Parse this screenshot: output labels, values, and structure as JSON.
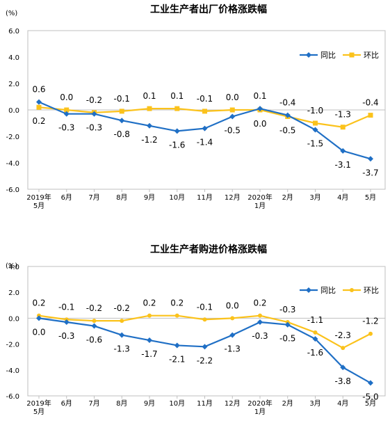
{
  "chart_data": [
    {
      "type": "line",
      "title": "工业生产者出厂价格涨跌幅",
      "y_unit": "(%)",
      "ylim": [
        -6.0,
        6.0
      ],
      "yticks": [
        6.0,
        4.0,
        2.0,
        0.0,
        -2.0,
        -4.0,
        -6.0
      ],
      "ytick_labels": [
        "6.0",
        "4.0",
        "2.0",
        "0.0",
        "-2.0",
        "-4.0",
        "-6.0"
      ],
      "categories": [
        [
          "2019年",
          "5月"
        ],
        [
          "6月"
        ],
        [
          "7月"
        ],
        [
          "8月"
        ],
        [
          "9月"
        ],
        [
          "10月"
        ],
        [
          "11月"
        ],
        [
          "12月"
        ],
        [
          "2020年",
          "1月"
        ],
        [
          "2月"
        ],
        [
          "3月"
        ],
        [
          "4月"
        ],
        [
          "5月"
        ]
      ],
      "grid": false,
      "legend_position": "top-right",
      "series": [
        {
          "name": "同比",
          "color": "#1F6FC5",
          "marker": "diamond",
          "values": [
            0.6,
            -0.3,
            -0.3,
            -0.8,
            -1.2,
            -1.6,
            -1.4,
            -0.5,
            0.1,
            -0.4,
            -1.5,
            -3.1,
            -3.7
          ],
          "labels": [
            "0.6",
            "-0.3",
            "-0.3",
            "-0.8",
            "-1.2",
            "-1.6",
            "-1.4",
            "-0.5",
            "0.1",
            "-0.4",
            "-1.5",
            "-3.1",
            "-3.7"
          ]
        },
        {
          "name": "环比",
          "color": "#FBC21B",
          "marker": "square",
          "values": [
            0.2,
            0.0,
            -0.2,
            -0.1,
            0.1,
            0.1,
            -0.1,
            0.0,
            0.0,
            -0.5,
            -1.0,
            -1.3,
            -0.4
          ],
          "labels": [
            "0.2",
            "0.0",
            "-0.2",
            "-0.1",
            "0.1",
            "0.1",
            "-0.1",
            "0.0",
            "0.0",
            "-0.5",
            "-1.0",
            "-1.3",
            "-0.4"
          ]
        }
      ]
    },
    {
      "type": "line",
      "title": "工业生产者购进价格涨跌幅",
      "y_unit": "(%)",
      "ylim": [
        -6.0,
        4.0
      ],
      "yticks": [
        4.0,
        2.0,
        0.0,
        -2.0,
        -4.0,
        -6.0
      ],
      "ytick_labels": [
        "4.0",
        "2.0",
        "0.0",
        "-2.0",
        "-4.0",
        "-6.0"
      ],
      "categories": [
        [
          "2019年",
          "5月"
        ],
        [
          "6月"
        ],
        [
          "7月"
        ],
        [
          "8月"
        ],
        [
          "9月"
        ],
        [
          "10月"
        ],
        [
          "11月"
        ],
        [
          "12月"
        ],
        [
          "2020年",
          "1月"
        ],
        [
          "2月"
        ],
        [
          "3月"
        ],
        [
          "4月"
        ],
        [
          "5月"
        ]
      ],
      "grid": false,
      "legend_position": "top-right",
      "series": [
        {
          "name": "同比",
          "color": "#1F6FC5",
          "marker": "diamond",
          "values": [
            0.0,
            -0.3,
            -0.6,
            -1.3,
            -1.7,
            -2.1,
            -2.2,
            -1.3,
            -0.3,
            -0.5,
            -1.6,
            -3.8,
            -5.0
          ],
          "labels": [
            "0.0",
            "-0.3",
            "-0.6",
            "-1.3",
            "-1.7",
            "-2.1",
            "-2.2",
            "-1.3",
            "-0.3",
            "-0.5",
            "-1.6",
            "-3.8",
            "-5.0"
          ]
        },
        {
          "name": "环比",
          "color": "#FBC21B",
          "marker": "circle",
          "values": [
            0.2,
            -0.1,
            -0.2,
            -0.2,
            0.2,
            0.2,
            -0.1,
            0.0,
            0.2,
            -0.3,
            -1.1,
            -2.3,
            -1.2
          ],
          "labels": [
            "0.2",
            "-0.1",
            "-0.2",
            "-0.2",
            "0.2",
            "0.2",
            "-0.1",
            "0.0",
            "0.2",
            "-0.3",
            "-1.1",
            "-2.3",
            "-1.2"
          ]
        }
      ]
    }
  ]
}
